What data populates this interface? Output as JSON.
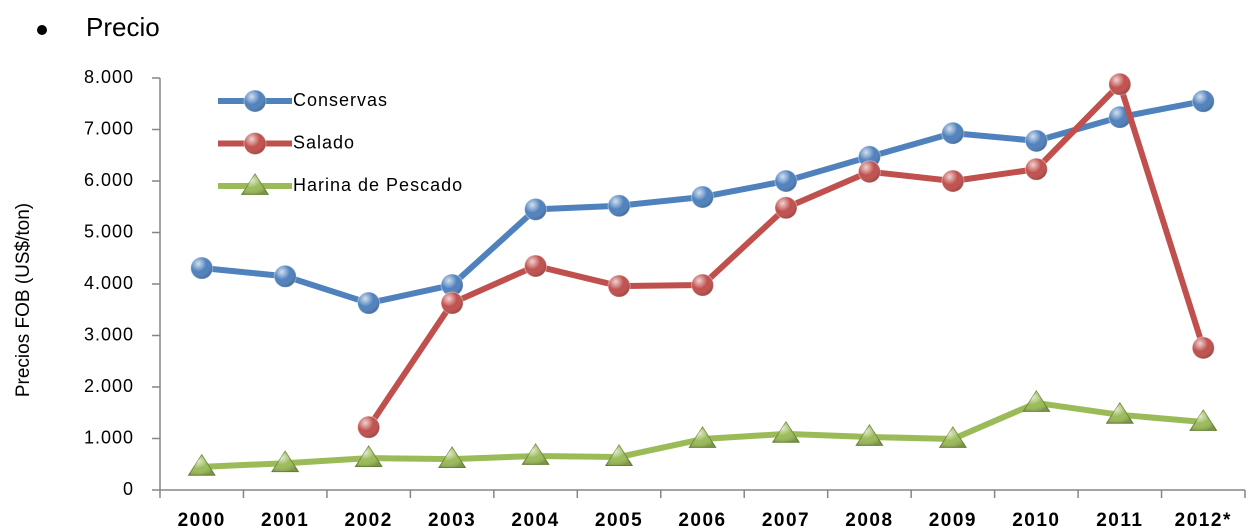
{
  "heading": "Precio",
  "chart_data": {
    "type": "line",
    "y_label": "Precios FOB (US$/ton)",
    "categories": [
      "2000",
      "2001",
      "2002",
      "2003",
      "2004",
      "2005",
      "2006",
      "2007",
      "2008",
      "2009",
      "2010",
      "2011",
      "2012*"
    ],
    "series": [
      {
        "name": "Conservas",
        "color": "#4f81bd",
        "marker": "circle",
        "values": [
          4310,
          4150,
          3630,
          3980,
          5450,
          5520,
          5690,
          6000,
          6470,
          6930,
          6780,
          7240,
          7550
        ]
      },
      {
        "name": "Salado",
        "color": "#c0504d",
        "marker": "circle",
        "values": [
          null,
          null,
          1220,
          3630,
          4350,
          3960,
          3980,
          5480,
          6180,
          6000,
          6230,
          7880,
          2760
        ]
      },
      {
        "name": "Harina de Pescado",
        "color": "#9bbb59",
        "marker": "triangle",
        "values": [
          450,
          520,
          620,
          600,
          660,
          640,
          990,
          1090,
          1030,
          990,
          1690,
          1460,
          1320
        ]
      }
    ],
    "ylim": [
      0,
      8000
    ],
    "yticks": [
      0,
      {
        "value": 1000,
        "label": "1.000"
      },
      {
        "value": 2000,
        "label": "2.000"
      },
      {
        "value": 3000,
        "label": "3.000"
      },
      {
        "value": 4000,
        "label": "4.000"
      },
      {
        "value": 5000,
        "label": "5.000"
      },
      {
        "value": 6000,
        "label": "6.000"
      },
      {
        "value": 7000,
        "label": "7.000"
      },
      {
        "value": 8000,
        "label": "8.000"
      }
    ],
    "legend": "top-left"
  }
}
